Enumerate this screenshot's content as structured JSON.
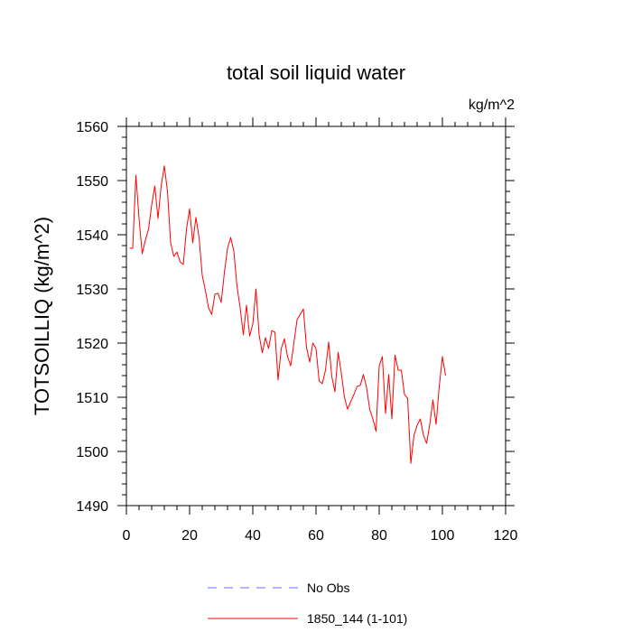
{
  "chart_data": {
    "type": "line",
    "title": "total soil liquid water",
    "units_label": "kg/m^2",
    "ylabel": "TOTSOILLIQ  (kg/m^2)",
    "xlabel": "",
    "xlim": [
      0,
      120
    ],
    "ylim": [
      1490,
      1560
    ],
    "xticks": [
      0,
      20,
      40,
      60,
      80,
      100,
      120
    ],
    "yticks": [
      1490,
      1500,
      1510,
      1520,
      1530,
      1540,
      1550,
      1560
    ],
    "x_minor_step": 4,
    "y_minor_step": 2,
    "colors": {
      "model": "#ff0000",
      "obs": "#6a6aff"
    },
    "legend": [
      {
        "label": "No Obs",
        "style": "dashed",
        "color": "#6a6aff"
      },
      {
        "label": "1850_144 (1-101)",
        "style": "solid",
        "color": "#ff0000"
      }
    ],
    "series": [
      {
        "name": "1850_144 (1-101)",
        "x_start": 1,
        "values": [
          1537.5,
          1537.5,
          1551.0,
          1543.0,
          1536.5,
          1539.0,
          1541.0,
          1545.5,
          1549.0,
          1543.0,
          1549.0,
          1552.7,
          1548.0,
          1538.5,
          1536.0,
          1536.8,
          1535.0,
          1534.5,
          1541.0,
          1544.8,
          1538.5,
          1543.2,
          1539.5,
          1532.5,
          1529.7,
          1526.5,
          1525.3,
          1529.0,
          1529.2,
          1527.5,
          1533.0,
          1537.5,
          1539.5,
          1537.0,
          1530.5,
          1526.5,
          1521.5,
          1527.0,
          1521.3,
          1523.5,
          1530.0,
          1521.5,
          1518.2,
          1521.0,
          1519.0,
          1522.3,
          1522.0,
          1513.2,
          1519.0,
          1520.8,
          1517.5,
          1515.8,
          1520.0,
          1524.3,
          1525.3,
          1526.3,
          1519.2,
          1516.5,
          1520.0,
          1519.0,
          1513.0,
          1512.5,
          1515.0,
          1520.2,
          1513.8,
          1511.0,
          1518.3,
          1514.5,
          1510.0,
          1507.8,
          1509.2,
          1510.5,
          1512.0,
          1512.2,
          1514.2,
          1511.8,
          1507.8,
          1506.0,
          1503.7,
          1515.8,
          1517.5,
          1507.0,
          1514.2,
          1506.0,
          1517.8,
          1515.0,
          1515.0,
          1510.5,
          1509.8,
          1497.8,
          1503.0,
          1504.8,
          1506.0,
          1503.0,
          1501.5,
          1505.0,
          1509.5,
          1505.0,
          1512.0,
          1517.5,
          1514.0
        ]
      }
    ]
  }
}
